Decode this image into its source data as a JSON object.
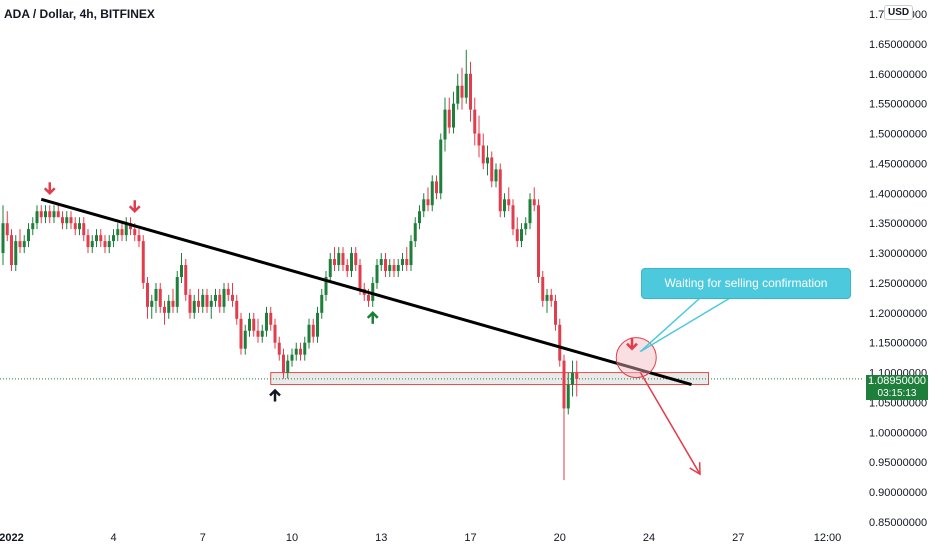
{
  "header": {
    "title": "ADA / Dollar, 4h, BITFINEX",
    "currency": "USD"
  },
  "price_tag": {
    "price": "1.08950000",
    "countdown": "03:15:13"
  },
  "annotation": {
    "text": "Waiting for selling confirmation"
  },
  "colors": {
    "up": "#1e7f3a",
    "down": "#e23d4d",
    "trendline": "#000000",
    "callout": "#4cc9dc",
    "zone_border": "#e24b4b",
    "zone_fill": "#e3e3e3"
  },
  "chart_data": {
    "type": "candlestick",
    "title": "ADA / Dollar, 4h, BITFINEX",
    "ylim": [
      0.85,
      1.7
    ],
    "y_ticks": [
      {
        "value": 1.7,
        "label": "1.70000000"
      },
      {
        "value": 1.65,
        "label": "1.65000000"
      },
      {
        "value": 1.6,
        "label": "1.60000000"
      },
      {
        "value": 1.55,
        "label": "1.55000000"
      },
      {
        "value": 1.5,
        "label": "1.50000000"
      },
      {
        "value": 1.45,
        "label": "1.45000000"
      },
      {
        "value": 1.4,
        "label": "1.40000000"
      },
      {
        "value": 1.35,
        "label": "1.35000000"
      },
      {
        "value": 1.3,
        "label": "1.30000000"
      },
      {
        "value": 1.25,
        "label": "1.25000000"
      },
      {
        "value": 1.2,
        "label": "1.20000000"
      },
      {
        "value": 1.15,
        "label": "1.15000000"
      },
      {
        "value": 1.1,
        "label": "1.10000000"
      },
      {
        "value": 1.05,
        "label": "1.05000000"
      },
      {
        "value": 1.0,
        "label": "1.00000000"
      },
      {
        "value": 0.95,
        "label": "0.95000000"
      },
      {
        "value": 0.9,
        "label": "0.90000000"
      },
      {
        "value": 0.85,
        "label": "0.85000000"
      }
    ],
    "x_ticks": [
      {
        "index": 2,
        "label": "2022"
      },
      {
        "index": 26,
        "label": "4"
      },
      {
        "index": 47,
        "label": "7"
      },
      {
        "index": 68,
        "label": "10"
      },
      {
        "index": 89,
        "label": "13"
      },
      {
        "index": 110,
        "label": "17"
      },
      {
        "index": 131,
        "label": "20"
      },
      {
        "index": 152,
        "label": "24"
      },
      {
        "index": 173,
        "label": "27"
      },
      {
        "index": 194,
        "label": "12:00"
      }
    ],
    "last_price": 1.0895,
    "trendline": [
      {
        "index": 9,
        "value": 1.39
      },
      {
        "index": 162,
        "value": 1.08
      }
    ],
    "support_zone": {
      "from_index": 63,
      "to_index": 166,
      "high": 1.1,
      "low": 1.08
    },
    "projection_arrow": [
      {
        "index": 150,
        "value": 1.1
      },
      {
        "index": 164,
        "value": 0.93
      }
    ],
    "markers": [
      {
        "index": 11,
        "value": 1.4,
        "type": "down",
        "color": "#e23d4d"
      },
      {
        "index": 31,
        "value": 1.37,
        "type": "down",
        "color": "#e23d4d"
      },
      {
        "index": 64,
        "value": 1.07,
        "type": "up",
        "color": "#131722"
      },
      {
        "index": 87,
        "value": 1.2,
        "type": "up",
        "color": "#1e7f3a"
      },
      {
        "index": 148,
        "value": 1.14,
        "type": "down",
        "color": "#e23d4d"
      }
    ],
    "highlight_circle": {
      "index": 149,
      "value": 1.125
    },
    "candles": [
      {
        "o": 1.3,
        "h": 1.38,
        "l": 1.28,
        "c": 1.35
      },
      {
        "o": 1.35,
        "h": 1.37,
        "l": 1.32,
        "c": 1.33
      },
      {
        "o": 1.33,
        "h": 1.34,
        "l": 1.27,
        "c": 1.28
      },
      {
        "o": 1.28,
        "h": 1.33,
        "l": 1.27,
        "c": 1.32
      },
      {
        "o": 1.32,
        "h": 1.34,
        "l": 1.3,
        "c": 1.31
      },
      {
        "o": 1.31,
        "h": 1.33,
        "l": 1.3,
        "c": 1.32
      },
      {
        "o": 1.32,
        "h": 1.35,
        "l": 1.31,
        "c": 1.34
      },
      {
        "o": 1.34,
        "h": 1.36,
        "l": 1.33,
        "c": 1.35
      },
      {
        "o": 1.35,
        "h": 1.38,
        "l": 1.34,
        "c": 1.37
      },
      {
        "o": 1.37,
        "h": 1.38,
        "l": 1.35,
        "c": 1.36
      },
      {
        "o": 1.36,
        "h": 1.38,
        "l": 1.35,
        "c": 1.37
      },
      {
        "o": 1.37,
        "h": 1.38,
        "l": 1.35,
        "c": 1.36
      },
      {
        "o": 1.36,
        "h": 1.38,
        "l": 1.35,
        "c": 1.37
      },
      {
        "o": 1.37,
        "h": 1.38,
        "l": 1.36,
        "c": 1.36
      },
      {
        "o": 1.36,
        "h": 1.37,
        "l": 1.34,
        "c": 1.35
      },
      {
        "o": 1.35,
        "h": 1.37,
        "l": 1.34,
        "c": 1.36
      },
      {
        "o": 1.36,
        "h": 1.37,
        "l": 1.34,
        "c": 1.35
      },
      {
        "o": 1.35,
        "h": 1.36,
        "l": 1.33,
        "c": 1.34
      },
      {
        "o": 1.34,
        "h": 1.36,
        "l": 1.33,
        "c": 1.35
      },
      {
        "o": 1.35,
        "h": 1.36,
        "l": 1.32,
        "c": 1.33
      },
      {
        "o": 1.33,
        "h": 1.34,
        "l": 1.3,
        "c": 1.31
      },
      {
        "o": 1.31,
        "h": 1.33,
        "l": 1.3,
        "c": 1.32
      },
      {
        "o": 1.32,
        "h": 1.34,
        "l": 1.31,
        "c": 1.33
      },
      {
        "o": 1.33,
        "h": 1.34,
        "l": 1.31,
        "c": 1.32
      },
      {
        "o": 1.32,
        "h": 1.33,
        "l": 1.3,
        "c": 1.31
      },
      {
        "o": 1.31,
        "h": 1.33,
        "l": 1.3,
        "c": 1.32
      },
      {
        "o": 1.32,
        "h": 1.34,
        "l": 1.31,
        "c": 1.33
      },
      {
        "o": 1.33,
        "h": 1.35,
        "l": 1.32,
        "c": 1.34
      },
      {
        "o": 1.34,
        "h": 1.35,
        "l": 1.32,
        "c": 1.33
      },
      {
        "o": 1.33,
        "h": 1.36,
        "l": 1.32,
        "c": 1.35
      },
      {
        "o": 1.35,
        "h": 1.36,
        "l": 1.33,
        "c": 1.34
      },
      {
        "o": 1.34,
        "h": 1.35,
        "l": 1.32,
        "c": 1.33
      },
      {
        "o": 1.33,
        "h": 1.34,
        "l": 1.31,
        "c": 1.32
      },
      {
        "o": 1.32,
        "h": 1.33,
        "l": 1.24,
        "c": 1.25
      },
      {
        "o": 1.25,
        "h": 1.26,
        "l": 1.19,
        "c": 1.21
      },
      {
        "o": 1.21,
        "h": 1.23,
        "l": 1.19,
        "c": 1.22
      },
      {
        "o": 1.22,
        "h": 1.25,
        "l": 1.2,
        "c": 1.24
      },
      {
        "o": 1.24,
        "h": 1.25,
        "l": 1.2,
        "c": 1.21
      },
      {
        "o": 1.21,
        "h": 1.22,
        "l": 1.18,
        "c": 1.2
      },
      {
        "o": 1.2,
        "h": 1.23,
        "l": 1.19,
        "c": 1.22
      },
      {
        "o": 1.22,
        "h": 1.24,
        "l": 1.2,
        "c": 1.21
      },
      {
        "o": 1.21,
        "h": 1.27,
        "l": 1.2,
        "c": 1.26
      },
      {
        "o": 1.26,
        "h": 1.3,
        "l": 1.25,
        "c": 1.28
      },
      {
        "o": 1.28,
        "h": 1.29,
        "l": 1.22,
        "c": 1.23
      },
      {
        "o": 1.23,
        "h": 1.24,
        "l": 1.19,
        "c": 1.2
      },
      {
        "o": 1.2,
        "h": 1.23,
        "l": 1.19,
        "c": 1.22
      },
      {
        "o": 1.22,
        "h": 1.24,
        "l": 1.2,
        "c": 1.21
      },
      {
        "o": 1.21,
        "h": 1.24,
        "l": 1.2,
        "c": 1.23
      },
      {
        "o": 1.23,
        "h": 1.24,
        "l": 1.2,
        "c": 1.21
      },
      {
        "o": 1.21,
        "h": 1.23,
        "l": 1.19,
        "c": 1.22
      },
      {
        "o": 1.22,
        "h": 1.24,
        "l": 1.21,
        "c": 1.23
      },
      {
        "o": 1.23,
        "h": 1.24,
        "l": 1.2,
        "c": 1.21
      },
      {
        "o": 1.21,
        "h": 1.25,
        "l": 1.2,
        "c": 1.24
      },
      {
        "o": 1.24,
        "h": 1.25,
        "l": 1.22,
        "c": 1.23
      },
      {
        "o": 1.23,
        "h": 1.25,
        "l": 1.21,
        "c": 1.22
      },
      {
        "o": 1.22,
        "h": 1.23,
        "l": 1.18,
        "c": 1.19
      },
      {
        "o": 1.19,
        "h": 1.2,
        "l": 1.13,
        "c": 1.14
      },
      {
        "o": 1.14,
        "h": 1.18,
        "l": 1.13,
        "c": 1.17
      },
      {
        "o": 1.17,
        "h": 1.2,
        "l": 1.16,
        "c": 1.19
      },
      {
        "o": 1.19,
        "h": 1.2,
        "l": 1.16,
        "c": 1.17
      },
      {
        "o": 1.17,
        "h": 1.19,
        "l": 1.15,
        "c": 1.16
      },
      {
        "o": 1.16,
        "h": 1.18,
        "l": 1.15,
        "c": 1.17
      },
      {
        "o": 1.17,
        "h": 1.21,
        "l": 1.16,
        "c": 1.2
      },
      {
        "o": 1.2,
        "h": 1.21,
        "l": 1.17,
        "c": 1.18
      },
      {
        "o": 1.18,
        "h": 1.19,
        "l": 1.14,
        "c": 1.15
      },
      {
        "o": 1.15,
        "h": 1.16,
        "l": 1.12,
        "c": 1.13
      },
      {
        "o": 1.13,
        "h": 1.14,
        "l": 1.09,
        "c": 1.1
      },
      {
        "o": 1.1,
        "h": 1.13,
        "l": 1.09,
        "c": 1.12
      },
      {
        "o": 1.12,
        "h": 1.14,
        "l": 1.11,
        "c": 1.13
      },
      {
        "o": 1.13,
        "h": 1.15,
        "l": 1.12,
        "c": 1.14
      },
      {
        "o": 1.14,
        "h": 1.15,
        "l": 1.12,
        "c": 1.13
      },
      {
        "o": 1.13,
        "h": 1.16,
        "l": 1.12,
        "c": 1.15
      },
      {
        "o": 1.15,
        "h": 1.19,
        "l": 1.14,
        "c": 1.18
      },
      {
        "o": 1.18,
        "h": 1.19,
        "l": 1.15,
        "c": 1.16
      },
      {
        "o": 1.16,
        "h": 1.21,
        "l": 1.15,
        "c": 1.2
      },
      {
        "o": 1.2,
        "h": 1.24,
        "l": 1.19,
        "c": 1.23
      },
      {
        "o": 1.23,
        "h": 1.27,
        "l": 1.22,
        "c": 1.26
      },
      {
        "o": 1.26,
        "h": 1.3,
        "l": 1.25,
        "c": 1.29
      },
      {
        "o": 1.29,
        "h": 1.31,
        "l": 1.27,
        "c": 1.28
      },
      {
        "o": 1.28,
        "h": 1.31,
        "l": 1.27,
        "c": 1.3
      },
      {
        "o": 1.3,
        "h": 1.31,
        "l": 1.27,
        "c": 1.28
      },
      {
        "o": 1.28,
        "h": 1.29,
        "l": 1.26,
        "c": 1.27
      },
      {
        "o": 1.27,
        "h": 1.31,
        "l": 1.26,
        "c": 1.3
      },
      {
        "o": 1.3,
        "h": 1.31,
        "l": 1.27,
        "c": 1.28
      },
      {
        "o": 1.28,
        "h": 1.29,
        "l": 1.23,
        "c": 1.24
      },
      {
        "o": 1.24,
        "h": 1.25,
        "l": 1.22,
        "c": 1.23
      },
      {
        "o": 1.23,
        "h": 1.24,
        "l": 1.21,
        "c": 1.22
      },
      {
        "o": 1.22,
        "h": 1.26,
        "l": 1.21,
        "c": 1.25
      },
      {
        "o": 1.25,
        "h": 1.29,
        "l": 1.24,
        "c": 1.28
      },
      {
        "o": 1.28,
        "h": 1.3,
        "l": 1.27,
        "c": 1.29
      },
      {
        "o": 1.29,
        "h": 1.3,
        "l": 1.26,
        "c": 1.27
      },
      {
        "o": 1.27,
        "h": 1.29,
        "l": 1.26,
        "c": 1.28
      },
      {
        "o": 1.28,
        "h": 1.29,
        "l": 1.26,
        "c": 1.27
      },
      {
        "o": 1.27,
        "h": 1.29,
        "l": 1.26,
        "c": 1.28
      },
      {
        "o": 1.28,
        "h": 1.3,
        "l": 1.27,
        "c": 1.29
      },
      {
        "o": 1.29,
        "h": 1.31,
        "l": 1.27,
        "c": 1.28
      },
      {
        "o": 1.28,
        "h": 1.33,
        "l": 1.27,
        "c": 1.32
      },
      {
        "o": 1.32,
        "h": 1.36,
        "l": 1.31,
        "c": 1.35
      },
      {
        "o": 1.35,
        "h": 1.38,
        "l": 1.34,
        "c": 1.37
      },
      {
        "o": 1.37,
        "h": 1.4,
        "l": 1.36,
        "c": 1.39
      },
      {
        "o": 1.39,
        "h": 1.41,
        "l": 1.37,
        "c": 1.38
      },
      {
        "o": 1.38,
        "h": 1.43,
        "l": 1.37,
        "c": 1.42
      },
      {
        "o": 1.42,
        "h": 1.43,
        "l": 1.39,
        "c": 1.4
      },
      {
        "o": 1.4,
        "h": 1.5,
        "l": 1.39,
        "c": 1.49
      },
      {
        "o": 1.49,
        "h": 1.56,
        "l": 1.47,
        "c": 1.54
      },
      {
        "o": 1.54,
        "h": 1.56,
        "l": 1.5,
        "c": 1.51
      },
      {
        "o": 1.51,
        "h": 1.57,
        "l": 1.5,
        "c": 1.55
      },
      {
        "o": 1.55,
        "h": 1.6,
        "l": 1.54,
        "c": 1.58
      },
      {
        "o": 1.58,
        "h": 1.61,
        "l": 1.54,
        "c": 1.56
      },
      {
        "o": 1.56,
        "h": 1.64,
        "l": 1.55,
        "c": 1.6
      },
      {
        "o": 1.6,
        "h": 1.62,
        "l": 1.52,
        "c": 1.54
      },
      {
        "o": 1.54,
        "h": 1.56,
        "l": 1.48,
        "c": 1.5
      },
      {
        "o": 1.5,
        "h": 1.53,
        "l": 1.46,
        "c": 1.48
      },
      {
        "o": 1.48,
        "h": 1.5,
        "l": 1.44,
        "c": 1.45
      },
      {
        "o": 1.45,
        "h": 1.48,
        "l": 1.43,
        "c": 1.46
      },
      {
        "o": 1.46,
        "h": 1.47,
        "l": 1.41,
        "c": 1.42
      },
      {
        "o": 1.42,
        "h": 1.45,
        "l": 1.41,
        "c": 1.44
      },
      {
        "o": 1.44,
        "h": 1.45,
        "l": 1.36,
        "c": 1.37
      },
      {
        "o": 1.37,
        "h": 1.4,
        "l": 1.36,
        "c": 1.39
      },
      {
        "o": 1.39,
        "h": 1.41,
        "l": 1.37,
        "c": 1.38
      },
      {
        "o": 1.38,
        "h": 1.39,
        "l": 1.33,
        "c": 1.34
      },
      {
        "o": 1.34,
        "h": 1.36,
        "l": 1.31,
        "c": 1.32
      },
      {
        "o": 1.32,
        "h": 1.35,
        "l": 1.31,
        "c": 1.34
      },
      {
        "o": 1.34,
        "h": 1.36,
        "l": 1.33,
        "c": 1.35
      },
      {
        "o": 1.35,
        "h": 1.4,
        "l": 1.34,
        "c": 1.39
      },
      {
        "o": 1.39,
        "h": 1.41,
        "l": 1.37,
        "c": 1.38
      },
      {
        "o": 1.38,
        "h": 1.39,
        "l": 1.25,
        "c": 1.26
      },
      {
        "o": 1.26,
        "h": 1.27,
        "l": 1.21,
        "c": 1.22
      },
      {
        "o": 1.22,
        "h": 1.24,
        "l": 1.2,
        "c": 1.23
      },
      {
        "o": 1.23,
        "h": 1.24,
        "l": 1.21,
        "c": 1.22
      },
      {
        "o": 1.22,
        "h": 1.23,
        "l": 1.17,
        "c": 1.18
      },
      {
        "o": 1.18,
        "h": 1.19,
        "l": 1.11,
        "c": 1.12
      },
      {
        "o": 1.12,
        "h": 1.13,
        "l": 0.92,
        "c": 1.04
      },
      {
        "o": 1.04,
        "h": 1.1,
        "l": 1.03,
        "c": 1.08
      },
      {
        "o": 1.08,
        "h": 1.12,
        "l": 1.06,
        "c": 1.1
      },
      {
        "o": 1.1,
        "h": 1.12,
        "l": 1.06,
        "c": 1.0895
      }
    ]
  }
}
